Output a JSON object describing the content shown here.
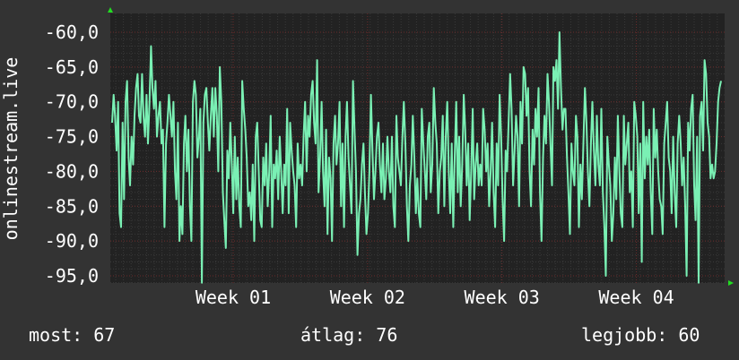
{
  "colors": {
    "background": "#333333",
    "plot_background": "#222222",
    "grid_minor": "#3a3a3a",
    "grid_major": "#6b2b2b",
    "line": "#7af0b4",
    "arrow": "#22dd22",
    "text": "#ffffff"
  },
  "stats": {
    "current": "most: 67",
    "average": "átlag: 76",
    "best": "legjobb: 60"
  },
  "chart_data": {
    "type": "line",
    "ylabel": "onlinestream.live",
    "y_inverted": true,
    "ylim": [
      -96.5,
      -57.5
    ],
    "yticks": [
      -60.0,
      -65.0,
      -70.0,
      -75.0,
      -80.0,
      -85.0,
      -90.0,
      -95.0
    ],
    "ytick_labels": [
      "-60,0",
      "-65,0",
      "-70,0",
      "-75,0",
      "-80,0",
      "-85,0",
      "-90,0",
      "-95,0"
    ],
    "xlim": [
      0,
      32
    ],
    "xticks": [
      6.4,
      13.4,
      20.4,
      27.4
    ],
    "xtick_labels": [
      "Week 01",
      "Week 02",
      "Week 03",
      "Week 04"
    ],
    "grid": true,
    "series": [
      {
        "values": [
          -73,
          -69,
          -72,
          -77,
          -70,
          -86,
          -88,
          -73,
          -84,
          -70,
          -67,
          -78,
          -82,
          -75,
          -79,
          -72,
          -68,
          -66,
          -72,
          -73,
          -66,
          -72,
          -75,
          -69,
          -76,
          -70,
          -62,
          -68,
          -71,
          -67,
          -75,
          -72,
          -70,
          -76,
          -74,
          -88,
          -76,
          -73,
          -69,
          -72,
          -75,
          -70,
          -80,
          -84,
          -73,
          -90,
          -85,
          -89,
          -76,
          -72,
          -80,
          -74,
          -85,
          -90,
          -70,
          -67,
          -69,
          -78,
          -75,
          -71,
          -96,
          -73,
          -69,
          -68,
          -73,
          -77,
          -72,
          -68,
          -75,
          -68,
          -72,
          -80,
          -65,
          -70,
          -83,
          -87,
          -91,
          -77,
          -81,
          -73,
          -79,
          -86,
          -75,
          -84,
          -78,
          -85,
          -88,
          -67,
          -71,
          -74,
          -78,
          -85,
          -83,
          -87,
          -79,
          -90,
          -75,
          -73,
          -80,
          -87,
          -88,
          -78,
          -82,
          -76,
          -85,
          -80,
          -72,
          -88,
          -79,
          -81,
          -77,
          -84,
          -75,
          -80,
          -86,
          -79,
          -82,
          -71,
          -86,
          -73,
          -77,
          -80,
          -82,
          -88,
          -76,
          -81,
          -79,
          -82,
          -75,
          -70,
          -80,
          -72,
          -75,
          -69,
          -67,
          -73,
          -76,
          -64,
          -83,
          -78,
          -70,
          -80,
          -85,
          -74,
          -89,
          -78,
          -81,
          -90,
          -76,
          -72,
          -79,
          -76,
          -70,
          -85,
          -76,
          -88,
          -75,
          -70,
          -78,
          -82,
          -86,
          -67,
          -74,
          -80,
          -92,
          -86,
          -84,
          -79,
          -76,
          -83,
          -89,
          -86,
          -80,
          -69,
          -77,
          -84,
          -80,
          -75,
          -73,
          -79,
          -83,
          -76,
          -84,
          -81,
          -75,
          -80,
          -83,
          -75,
          -85,
          -88,
          -72,
          -78,
          -80,
          -82,
          -75,
          -70,
          -76,
          -85,
          -90,
          -82,
          -79,
          -72,
          -78,
          -86,
          -81,
          -86,
          -88,
          -71,
          -76,
          -80,
          -84,
          -75,
          -73,
          -83,
          -79,
          -68,
          -73,
          -76,
          -86,
          -80,
          -78,
          -72,
          -85,
          -75,
          -70,
          -80,
          -86,
          -76,
          -88,
          -78,
          -70,
          -83,
          -75,
          -85,
          -79,
          -69,
          -74,
          -82,
          -76,
          -87,
          -80,
          -71,
          -84,
          -79,
          -76,
          -82,
          -79,
          -82,
          -71,
          -74,
          -80,
          -76,
          -85,
          -80,
          -73,
          -83,
          -88,
          -76,
          -82,
          -69,
          -75,
          -84,
          -90,
          -77,
          -80,
          -73,
          -66,
          -71,
          -82,
          -77,
          -72,
          -75,
          -85,
          -70,
          -76,
          -65,
          -66,
          -72,
          -68,
          -80,
          -85,
          -74,
          -79,
          -71,
          -75,
          -68,
          -83,
          -90,
          -78,
          -72,
          -76,
          -66,
          -70,
          -76,
          -82,
          -65,
          -67,
          -64,
          -71,
          -60,
          -68,
          -74,
          -71,
          -71,
          -78,
          -83,
          -89,
          -76,
          -80,
          -82,
          -72,
          -75,
          -88,
          -79,
          -84,
          -76,
          -68,
          -73,
          -80,
          -85,
          -76,
          -70,
          -77,
          -82,
          -72,
          -79,
          -82,
          -71,
          -83,
          -88,
          -95,
          -75,
          -79,
          -82,
          -90,
          -86,
          -78,
          -84,
          -72,
          -80,
          -86,
          -88,
          -72,
          -79,
          -76,
          -73,
          -83,
          -80,
          -88,
          -70,
          -72,
          -75,
          -86,
          -76,
          -93,
          -70,
          -81,
          -75,
          -79,
          -74,
          -83,
          -89,
          -71,
          -78,
          -74,
          -80,
          -84,
          -85,
          -89,
          -76,
          -73,
          -70,
          -78,
          -80,
          -86,
          -75,
          -83,
          -88,
          -76,
          -72,
          -76,
          -82,
          -78,
          -85,
          -95,
          -73,
          -77,
          -71,
          -69,
          -82,
          -87,
          -75,
          -96,
          -72,
          -70,
          -77,
          -64,
          -66,
          -73,
          -75,
          -81,
          -79,
          -81,
          -80,
          -76,
          -70,
          -68,
          -67
        ]
      }
    ]
  }
}
